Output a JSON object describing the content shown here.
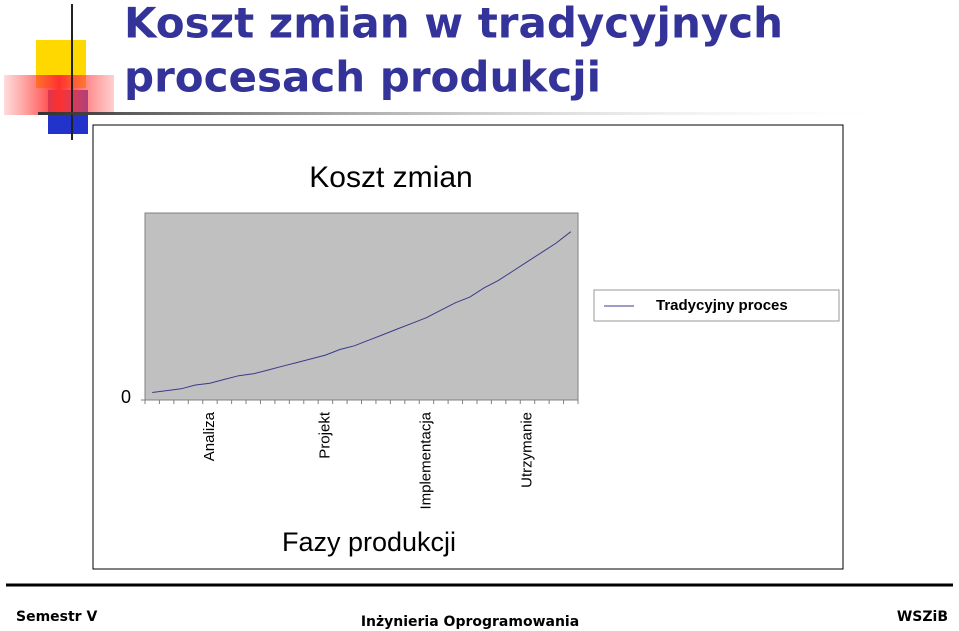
{
  "slide": {
    "title_lines": [
      "Koszt zmian w tradycyjnych",
      "procesach produkcji"
    ],
    "footer_left": "Semestr V",
    "footer_center": "Inżynieria Oprogramowania",
    "footer_right": "WSZiB"
  },
  "chart_data": {
    "type": "line",
    "title": "Koszt zmian",
    "x_label": "Fazy produkcji",
    "categories": [
      null,
      null,
      null,
      null,
      "Analiza",
      null,
      null,
      null,
      null,
      null,
      null,
      null,
      "Projekt",
      null,
      null,
      null,
      null,
      null,
      null,
      "Implementacja",
      null,
      null,
      null,
      null,
      null,
      null,
      "Utrzymanie",
      null,
      null,
      null
    ],
    "series": [
      {
        "name": "Tradycyjny proces",
        "color": "#3a3a8c",
        "values": [
          4,
          5,
          6,
          8,
          9,
          11,
          13,
          14,
          16,
          18,
          20,
          22,
          24,
          27,
          29,
          32,
          35,
          38,
          41,
          44,
          48,
          52,
          55,
          60,
          64,
          69,
          74,
          79,
          84,
          90
        ]
      }
    ],
    "ylim": [
      0,
      100
    ],
    "yticks": [
      0
    ],
    "grid": false,
    "legend": "right",
    "plot_background": "#c0c0c0"
  }
}
